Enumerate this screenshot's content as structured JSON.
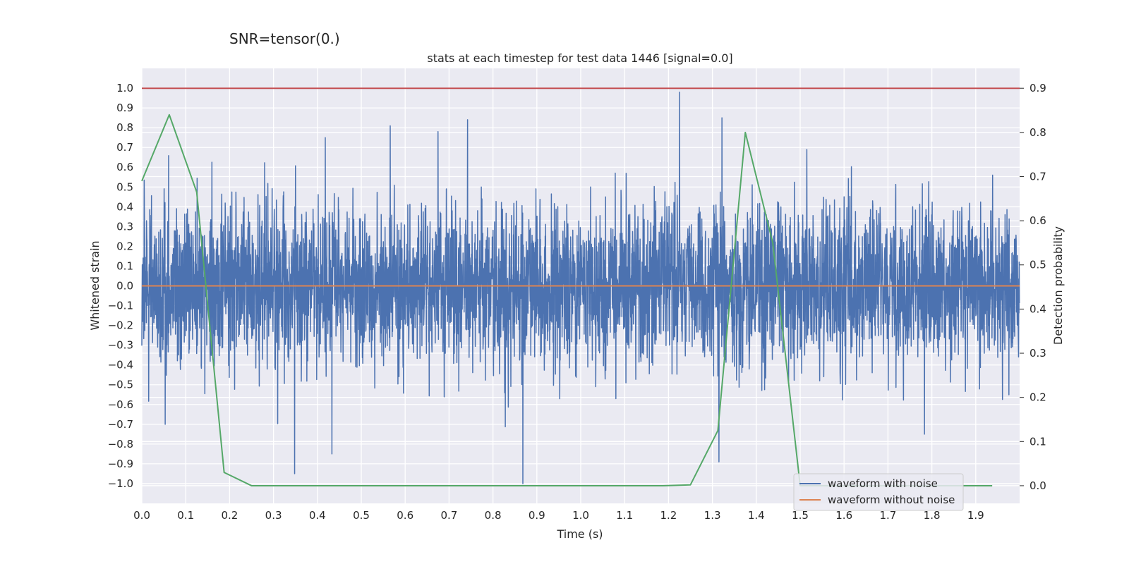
{
  "suptitle": "SNR=tensor(0.)",
  "chart_data": {
    "type": "line",
    "title": "stats at each timestep for test data 1446 [signal=0.0]",
    "xlabel": "Time (s)",
    "ylabel": "Whitened strain",
    "y2label": "Detection probability",
    "xlim": [
      0.0,
      2.0
    ],
    "ylim": [
      -1.1,
      1.1
    ],
    "y2lim": [
      -0.04,
      0.945
    ],
    "x_ticks": [
      "0.0",
      "0.1",
      "0.2",
      "0.3",
      "0.4",
      "0.5",
      "0.6",
      "0.7",
      "0.8",
      "0.9",
      "1.0",
      "1.1",
      "1.2",
      "1.3",
      "1.4",
      "1.5",
      "1.6",
      "1.7",
      "1.8",
      "1.9"
    ],
    "y_ticks": [
      "1.0",
      "0.9",
      "0.8",
      "0.7",
      "0.6",
      "0.5",
      "0.4",
      "0.3",
      "0.2",
      "0.1",
      "0.0",
      "-0.1",
      "-0.2",
      "-0.3",
      "-0.4",
      "-0.5",
      "-0.6",
      "-0.7",
      "-0.8",
      "-0.9",
      "-1.0"
    ],
    "y2_ticks": [
      "0.9",
      "0.8",
      "0.7",
      "0.6",
      "0.5",
      "0.4",
      "0.3",
      "0.2",
      "0.1",
      "0.0"
    ],
    "grid": true,
    "legend_position": "bottom-right",
    "series": [
      {
        "name": "waveform with noise",
        "axis": "left",
        "color": "#4c72b0",
        "sample_rate_hz": 2048,
        "duration_s": 2.0,
        "noise_seed": 1446,
        "noise_std": 0.2,
        "peaks": [
          {
            "x": 1.225,
            "y": 0.98
          },
          {
            "x": 0.868,
            "y": -1.0
          },
          {
            "x": 0.348,
            "y": -0.95
          },
          {
            "x": 1.315,
            "y": -0.89
          },
          {
            "x": 0.433,
            "y": -0.85
          },
          {
            "x": 1.322,
            "y": 0.85
          },
          {
            "x": 0.742,
            "y": 0.84
          },
          {
            "x": 0.566,
            "y": 0.81
          },
          {
            "x": 0.675,
            "y": 0.78
          },
          {
            "x": 1.783,
            "y": -0.75
          },
          {
            "x": 0.418,
            "y": 0.75
          },
          {
            "x": 1.515,
            "y": 0.69
          },
          {
            "x": 0.053,
            "y": -0.7
          }
        ]
      },
      {
        "name": "waveform without noise",
        "axis": "left",
        "color": "#dd8452",
        "x": [
          0.0,
          2.0
        ],
        "y": [
          0.0,
          0.0
        ]
      },
      {
        "name": "",
        "axis": "right",
        "color": "#55a868",
        "x": [
          0.0,
          0.0625,
          0.125,
          0.1875,
          0.25,
          0.3125,
          0.375,
          0.4375,
          0.5,
          0.5625,
          0.625,
          0.6875,
          0.75,
          0.8125,
          0.875,
          0.9375,
          1.0,
          1.0625,
          1.125,
          1.1875,
          1.25,
          1.3125,
          1.375,
          1.4375,
          1.5,
          1.5625,
          1.625,
          1.6875,
          1.75,
          1.8125,
          1.875,
          1.9375
        ],
        "y": [
          0.69,
          0.84,
          0.665,
          0.03,
          0.0,
          0.0,
          0.0,
          0.0,
          0.0,
          0.0,
          0.0,
          0.0,
          0.0,
          0.0,
          0.0,
          0.0,
          0.0,
          0.0,
          0.0,
          0.0,
          0.002,
          0.125,
          0.8,
          0.55,
          0.0,
          0.0,
          0.0,
          0.0,
          0.0,
          0.0,
          0.0,
          0.0
        ]
      },
      {
        "name": "",
        "axis": "right",
        "color": "#c44e52",
        "x": [
          0.0,
          2.0
        ],
        "y": [
          0.9,
          0.9
        ]
      }
    ]
  }
}
